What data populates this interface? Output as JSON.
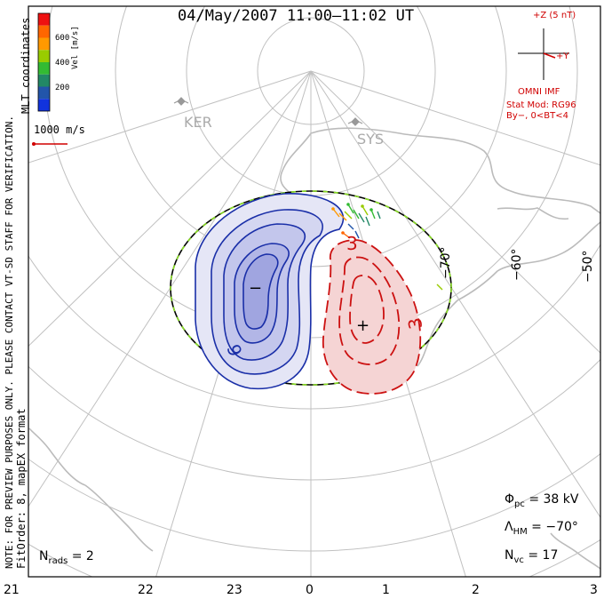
{
  "title": "04/May/2007 11:00–11:02 UT",
  "coordinates_label": "MLT coordinates",
  "note_label": "NOTE: FOR PREVIEW PURPOSES ONLY. PLEASE CONTACT VT-SD STAFF FOR VERIFICATION.",
  "fit_label": "FitOrder: 8, mapEX format",
  "velocity_legend": {
    "unit_label": "Vel [m/s]",
    "ticks": [
      "600",
      "400",
      "200"
    ],
    "colors": [
      "#ee1111",
      "#ff6600",
      "#ff9900",
      "#99cc00",
      "#33bb33",
      "#228866",
      "#2255aa",
      "#1133dd"
    ]
  },
  "vector_scale": {
    "label": "1000 m/s",
    "color": "#d00000"
  },
  "imf": {
    "z_label": "+Z (5 nT)",
    "y_label": "+Y",
    "source_label": "OMNI IMF",
    "stat_model": "Stat Mod: RG96",
    "stat_condition": "By−, 0<BT<4",
    "color": "#d00000"
  },
  "stations": [
    {
      "name": "KER",
      "icon": "station-icon"
    },
    {
      "name": "SYS",
      "icon": "station-icon"
    }
  ],
  "latitude_labels": [
    "−70°",
    "−60°",
    "−50°"
  ],
  "contour_labels": [
    {
      "text": "6",
      "color": "#1a2fa8"
    },
    {
      "text": "3",
      "color": "#cc1111"
    },
    {
      "text": "3",
      "color": "#cc1111"
    }
  ],
  "convection_cells": {
    "negative": {
      "marker": "−",
      "fill": "#c8cbee",
      "line_color": "#1a2fa8"
    },
    "positive": {
      "marker": "+",
      "fill": "#f5d4d4",
      "line_color": "#cc1111"
    }
  },
  "stats": {
    "phi": {
      "symbol": "Φ",
      "sub": "pc",
      "value": " = 38 kV"
    },
    "lambda": {
      "symbol": "Λ",
      "sub": "HM",
      "value": " = −70°"
    },
    "nvc": {
      "symbol": "N",
      "sub": "vc",
      "value": " = 17"
    },
    "nrads": {
      "symbol": "N",
      "sub": "rads",
      "value": " = 2"
    }
  },
  "mlt_labels": [
    "21",
    "22",
    "23",
    "0",
    "1",
    "2",
    "3"
  ]
}
